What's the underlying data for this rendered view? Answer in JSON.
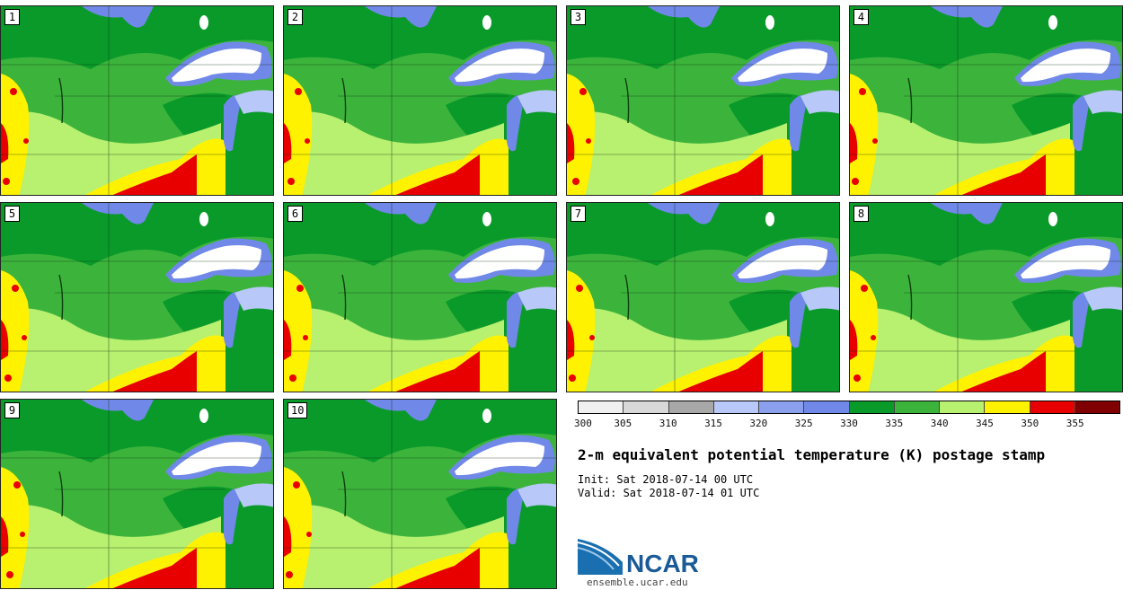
{
  "members": [
    {
      "label": "1"
    },
    {
      "label": "2"
    },
    {
      "label": "3"
    },
    {
      "label": "4"
    },
    {
      "label": "5"
    },
    {
      "label": "6"
    },
    {
      "label": "7"
    },
    {
      "label": "8"
    },
    {
      "label": "9"
    },
    {
      "label": "10"
    }
  ],
  "colorbar": {
    "levels": [
      "300",
      "305",
      "310",
      "315",
      "320",
      "325",
      "330",
      "335",
      "340",
      "345",
      "350",
      "355"
    ],
    "colors": [
      "#f0f0f0",
      "#d8d8d8",
      "#a8a8a8",
      "#b8c8f8",
      "#8aa0ee",
      "#7088e8",
      "#0a9a2a",
      "#3cb43c",
      "#b8f070",
      "#fff200",
      "#e80000",
      "#800000"
    ]
  },
  "map_colors": {
    "dark_green": "#0a9a2a",
    "mid_green": "#3cb43c",
    "light_green": "#b8f070",
    "yellow": "#fff200",
    "red": "#e80000",
    "blue": "#7088e8",
    "light_blue": "#b8c8f8",
    "white": "#ffffff"
  },
  "title": "2-m equivalent potential temperature (K) postage stamp",
  "init_line": "Init: Sat 2018-07-14 00 UTC",
  "valid_line": "Valid: Sat 2018-07-14 01 UTC",
  "logo": {
    "text": "NCAR",
    "url": "ensemble.ucar.edu"
  }
}
